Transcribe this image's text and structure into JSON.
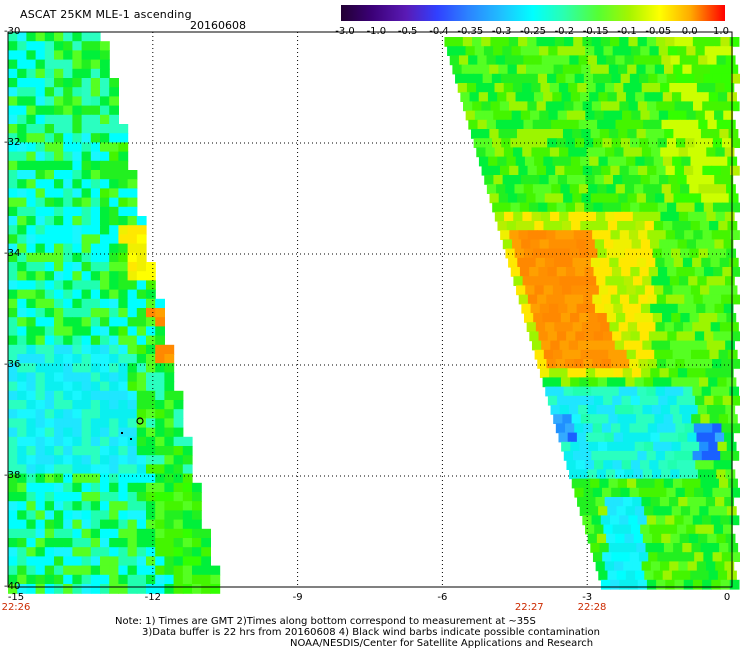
{
  "header": {
    "title": "ASCAT 25KM MLE-1 ascending",
    "date": "20160608"
  },
  "colorbar": {
    "labels": [
      "-3.0",
      "-1.0",
      "-0.5",
      "-0.4",
      "-0.35",
      "-0.3",
      "-0.25",
      "-0.2",
      "-0.15",
      "-0.1",
      "-0.05",
      "0.0",
      "1.0"
    ],
    "colors": [
      "#220033",
      "#3b0077",
      "#5a1ab5",
      "#3040ff",
      "#2c82ff",
      "#1fc1ff",
      "#00ffff",
      "#2affb0",
      "#55ff33",
      "#a4f500",
      "#ffff00",
      "#ffaa00",
      "#ff4a00",
      "#ff0000"
    ]
  },
  "map": {
    "lon_range": [
      -15,
      0
    ],
    "lat_range": [
      -40,
      -30
    ],
    "lat_ticks": [
      "-30",
      "-32",
      "-34",
      "-36",
      "-38",
      "-40"
    ],
    "lon_ticks": [
      "-15",
      "-12",
      "-9",
      "-6",
      "-3",
      "0"
    ],
    "times": [
      {
        "label": "22:26",
        "lon": -15
      },
      {
        "label": "22:27",
        "lon": -4.2
      },
      {
        "label": "22:28",
        "lon": -2.9
      }
    ]
  },
  "notes": {
    "line1": "Note: 1) Times are GMT 2)Times along bottom correspond to measurement at ~35S",
    "line2": "3)Data buffer is 22 hrs from 20160608 4) Black wind barbs indicate possible contamination",
    "line3": "NOAA/NESDIS/Center for Satellite Applications and Research"
  },
  "legend_colors": {
    "cyan": "#00ffff",
    "green": "#33ff00",
    "yellow": "#ffff00",
    "orange": "#ff8800",
    "blue": "#1a60ff"
  }
}
